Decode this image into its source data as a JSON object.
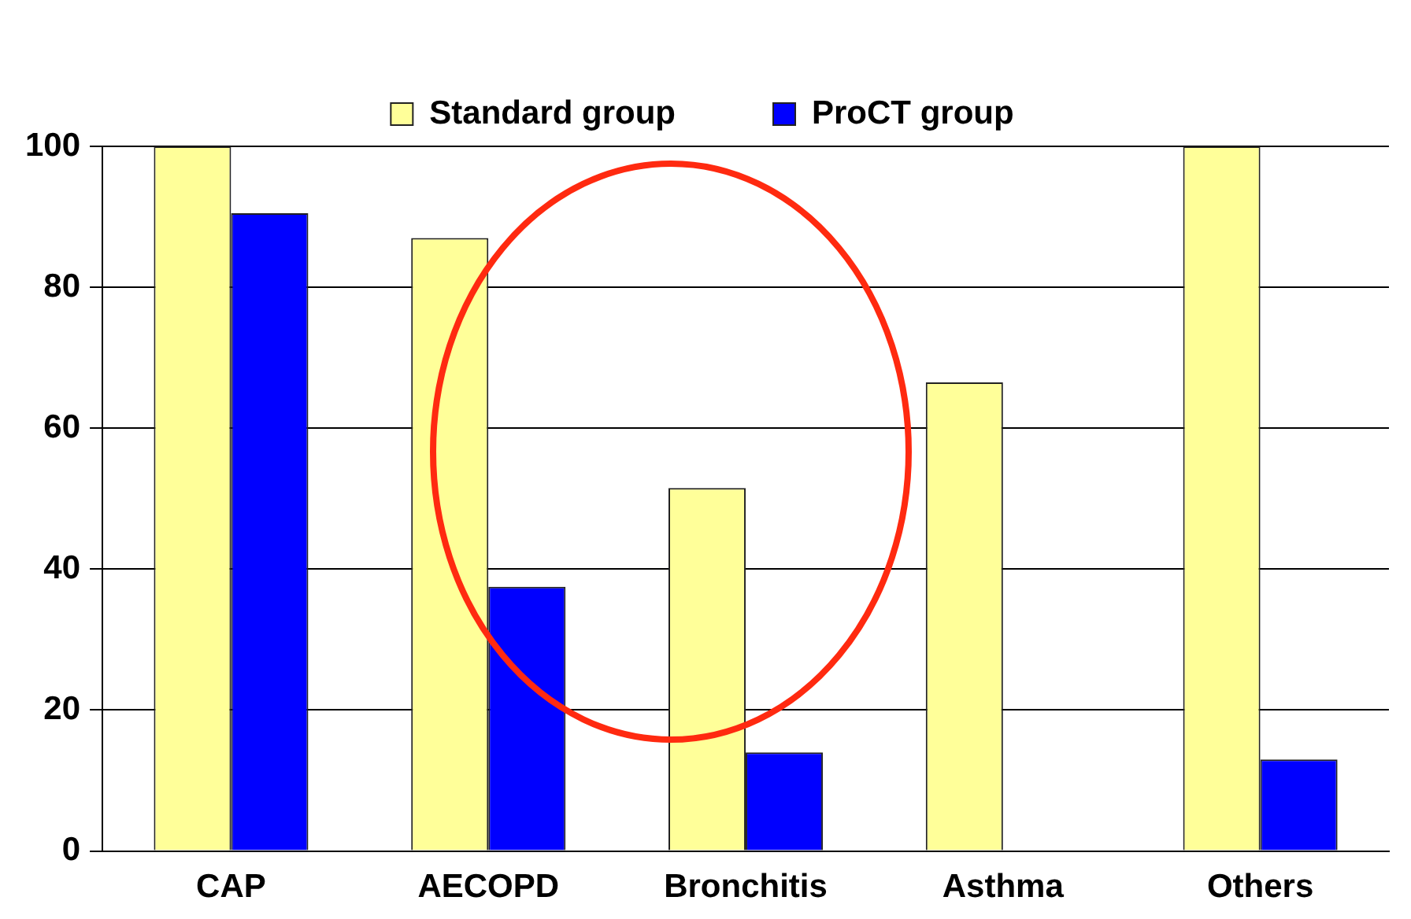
{
  "chart_data": {
    "type": "bar",
    "categories": [
      "CAP",
      "AECOPD",
      "Bronchitis",
      "Asthma",
      "Others"
    ],
    "series": [
      {
        "name": "Standard group",
        "color": "#ffff99",
        "values": [
          100,
          87,
          51.5,
          66.5,
          100
        ]
      },
      {
        "name": "ProCT group",
        "color": "#0000ff",
        "values": [
          90.5,
          37.5,
          14,
          0,
          13
        ]
      }
    ],
    "ylim": [
      0,
      100
    ],
    "yticks": [
      0,
      20,
      40,
      60,
      80,
      100
    ],
    "grid": "y",
    "legend": "top"
  }
}
